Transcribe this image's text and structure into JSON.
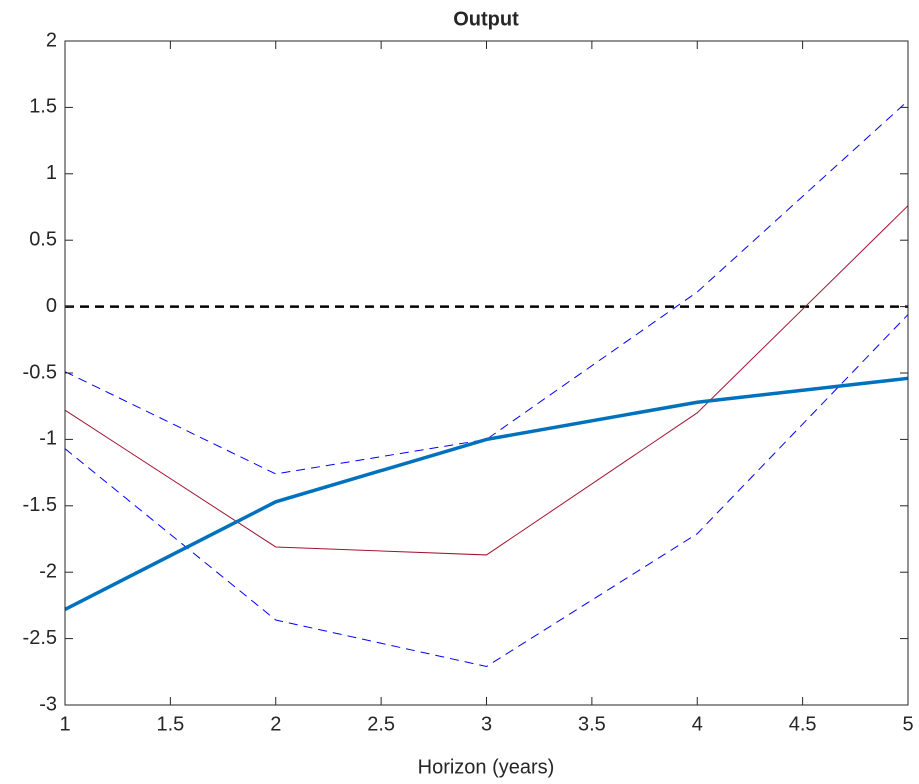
{
  "chart_data": {
    "type": "line",
    "title": "Output",
    "x_label": "Horizon (years)",
    "x": [
      1,
      2,
      3,
      4,
      5
    ],
    "series": [
      {
        "color": "#000000",
        "width": 2.5,
        "dash": "9 6",
        "values": [
          0,
          0,
          0,
          0,
          0
        ]
      },
      {
        "color": "#0000ff",
        "width": 1,
        "dash": "9 6",
        "values": [
          -0.49,
          -1.26,
          -1.0,
          0.11,
          1.55
        ]
      },
      {
        "color": "#0000ff",
        "width": 1,
        "dash": "9 6",
        "values": [
          -1.07,
          -2.36,
          -2.71,
          -1.71,
          -0.06
        ]
      },
      {
        "color": "#a2142f",
        "width": 1,
        "dash": "none",
        "values": [
          -0.78,
          -1.81,
          -1.87,
          -0.8,
          0.76
        ]
      },
      {
        "color": "#0072bd",
        "width": 3.5,
        "dash": "none",
        "values": [
          -2.28,
          -1.47,
          -1.0,
          -0.72,
          -0.54
        ]
      }
    ],
    "xlim": [
      1,
      5
    ],
    "xticks": [
      1,
      1.5,
      2,
      2.5,
      3,
      3.5,
      4,
      4.5,
      5
    ],
    "ylim": [
      -3,
      2
    ],
    "yticks": [
      -3,
      -2.5,
      -2,
      -1.5,
      -1,
      -0.5,
      0,
      0.5,
      1,
      1.5,
      2
    ],
    "grid": false,
    "box": true
  }
}
